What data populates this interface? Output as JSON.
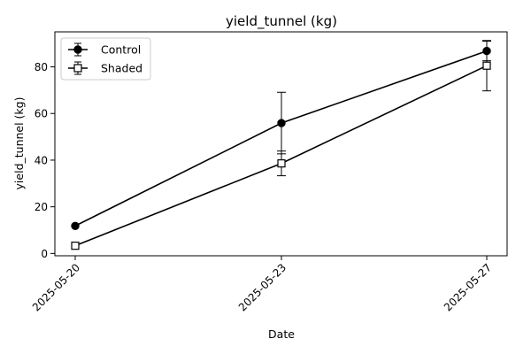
{
  "chart_data": {
    "type": "line",
    "title": "yield_tunnel (kg)",
    "xlabel": "Date",
    "ylabel": "yield_tunnel (kg)",
    "x": [
      "2025-05-20",
      "2025-05-23",
      "2025-05-27"
    ],
    "ylim": [
      -1,
      95
    ],
    "yticks": [
      0,
      20,
      40,
      60,
      80
    ],
    "grid": false,
    "legend_position": "top-left",
    "series": [
      {
        "name": "Control",
        "marker": "filled-circle",
        "color": "#000000",
        "values": [
          11.8,
          55.9,
          86.8
        ],
        "errors": [
          0.0,
          13.2,
          4.2
        ]
      },
      {
        "name": "Shaded",
        "marker": "open-square",
        "color": "#000000",
        "values": [
          3.3,
          38.6,
          80.5
        ],
        "errors": [
          0.0,
          5.3,
          10.8
        ]
      }
    ]
  }
}
